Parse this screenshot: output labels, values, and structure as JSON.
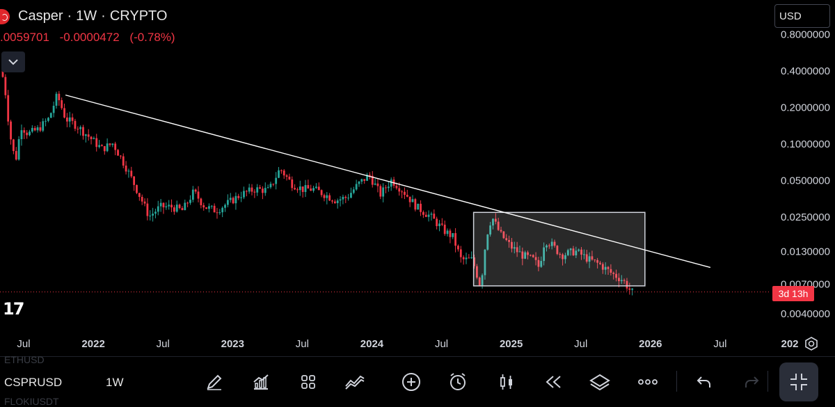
{
  "header": {
    "symbol_name": "Casper",
    "interval": "1W",
    "exchange": "CRYPTO",
    "price": ".0059701",
    "change": "-0.0000472",
    "change_pct": "(-0.78%)",
    "price_color": "#f23645"
  },
  "currency": "USD",
  "countdown": "3d 13h",
  "bottom_bar": {
    "symbol": "CSPRUSD",
    "interval": "1W",
    "ghost_above": "ETHUSD",
    "ghost_below": "FLOKIUSDT",
    "tools": [
      "pencil-icon",
      "indicators-icon",
      "templates-icon",
      "compare-icon",
      "add-icon",
      "alert-icon",
      "candles-icon",
      "replay-icon",
      "layers-icon",
      "more-icon",
      "undo-icon",
      "redo-icon"
    ]
  },
  "chart_data": {
    "type": "candlestick",
    "scale": "log",
    "up_color": "#26a69a",
    "down_color": "#f23645",
    "ylim": [
      0.0035,
      0.75
    ],
    "y_ticks": [
      {
        "value": 0.8,
        "label": "0.8000000"
      },
      {
        "value": 0.4,
        "label": "0.4000000"
      },
      {
        "value": 0.2,
        "label": "0.2000000"
      },
      {
        "value": 0.1,
        "label": "0.1000000"
      },
      {
        "value": 0.05,
        "label": "0.0500000"
      },
      {
        "value": 0.025,
        "label": "0.0250000"
      },
      {
        "value": 0.013,
        "label": "0.0130000"
      },
      {
        "value": 0.007,
        "label": "0.0070000"
      },
      {
        "value": 0.004,
        "label": "0.0040000"
      }
    ],
    "x_ticks": [
      "Jul",
      "2022",
      "Jul",
      "2023",
      "Jul",
      "2024",
      "Jul",
      "2025",
      "Jul",
      "2026",
      "Jul",
      "202"
    ],
    "price_path": [
      [
        2021.35,
        0.42
      ],
      [
        2021.38,
        0.32
      ],
      [
        2021.42,
        0.12
      ],
      [
        2021.46,
        0.07
      ],
      [
        2021.5,
        0.14
      ],
      [
        2021.55,
        0.12
      ],
      [
        2021.62,
        0.13
      ],
      [
        2021.7,
        0.16
      ],
      [
        2021.76,
        0.25
      ],
      [
        2021.82,
        0.16
      ],
      [
        2021.9,
        0.14
      ],
      [
        2022.0,
        0.11
      ],
      [
        2022.08,
        0.09
      ],
      [
        2022.16,
        0.1
      ],
      [
        2022.25,
        0.065
      ],
      [
        2022.33,
        0.042
      ],
      [
        2022.42,
        0.025
      ],
      [
        2022.5,
        0.03
      ],
      [
        2022.58,
        0.03
      ],
      [
        2022.66,
        0.028
      ],
      [
        2022.74,
        0.04
      ],
      [
        2022.82,
        0.03
      ],
      [
        2022.9,
        0.028
      ],
      [
        2023.0,
        0.033
      ],
      [
        2023.08,
        0.038
      ],
      [
        2023.18,
        0.042
      ],
      [
        2023.28,
        0.041
      ],
      [
        2023.36,
        0.062
      ],
      [
        2023.44,
        0.047
      ],
      [
        2023.52,
        0.042
      ],
      [
        2023.6,
        0.042
      ],
      [
        2023.68,
        0.038
      ],
      [
        2023.76,
        0.034
      ],
      [
        2023.84,
        0.036
      ],
      [
        2023.92,
        0.046
      ],
      [
        2024.0,
        0.055
      ],
      [
        2024.08,
        0.038
      ],
      [
        2024.16,
        0.05
      ],
      [
        2024.24,
        0.041
      ],
      [
        2024.34,
        0.03
      ],
      [
        2024.44,
        0.025
      ],
      [
        2024.54,
        0.019
      ],
      [
        2024.6,
        0.017
      ],
      [
        2024.66,
        0.011
      ],
      [
        2024.74,
        0.011
      ],
      [
        2024.8,
        0.0066
      ],
      [
        2024.84,
        0.017
      ],
      [
        2024.88,
        0.025
      ],
      [
        2024.94,
        0.018
      ],
      [
        2025.02,
        0.014
      ],
      [
        2025.1,
        0.012
      ],
      [
        2025.18,
        0.011
      ],
      [
        2025.22,
        0.0095
      ],
      [
        2025.26,
        0.016
      ],
      [
        2025.3,
        0.015
      ],
      [
        2025.38,
        0.012
      ],
      [
        2025.48,
        0.013
      ],
      [
        2025.58,
        0.011
      ],
      [
        2025.66,
        0.01
      ],
      [
        2025.74,
        0.0085
      ],
      [
        2025.82,
        0.0075
      ],
      [
        2025.86,
        0.0065
      ],
      [
        2025.88,
        0.0059701
      ]
    ],
    "trendline": [
      [
        2021.8,
        0.25
      ],
      [
        2026.43,
        0.0095
      ]
    ],
    "range_box": {
      "x": [
        2024.73,
        2025.96
      ],
      "y": [
        0.0067,
        0.027
      ]
    },
    "last_price": 0.0059701
  }
}
